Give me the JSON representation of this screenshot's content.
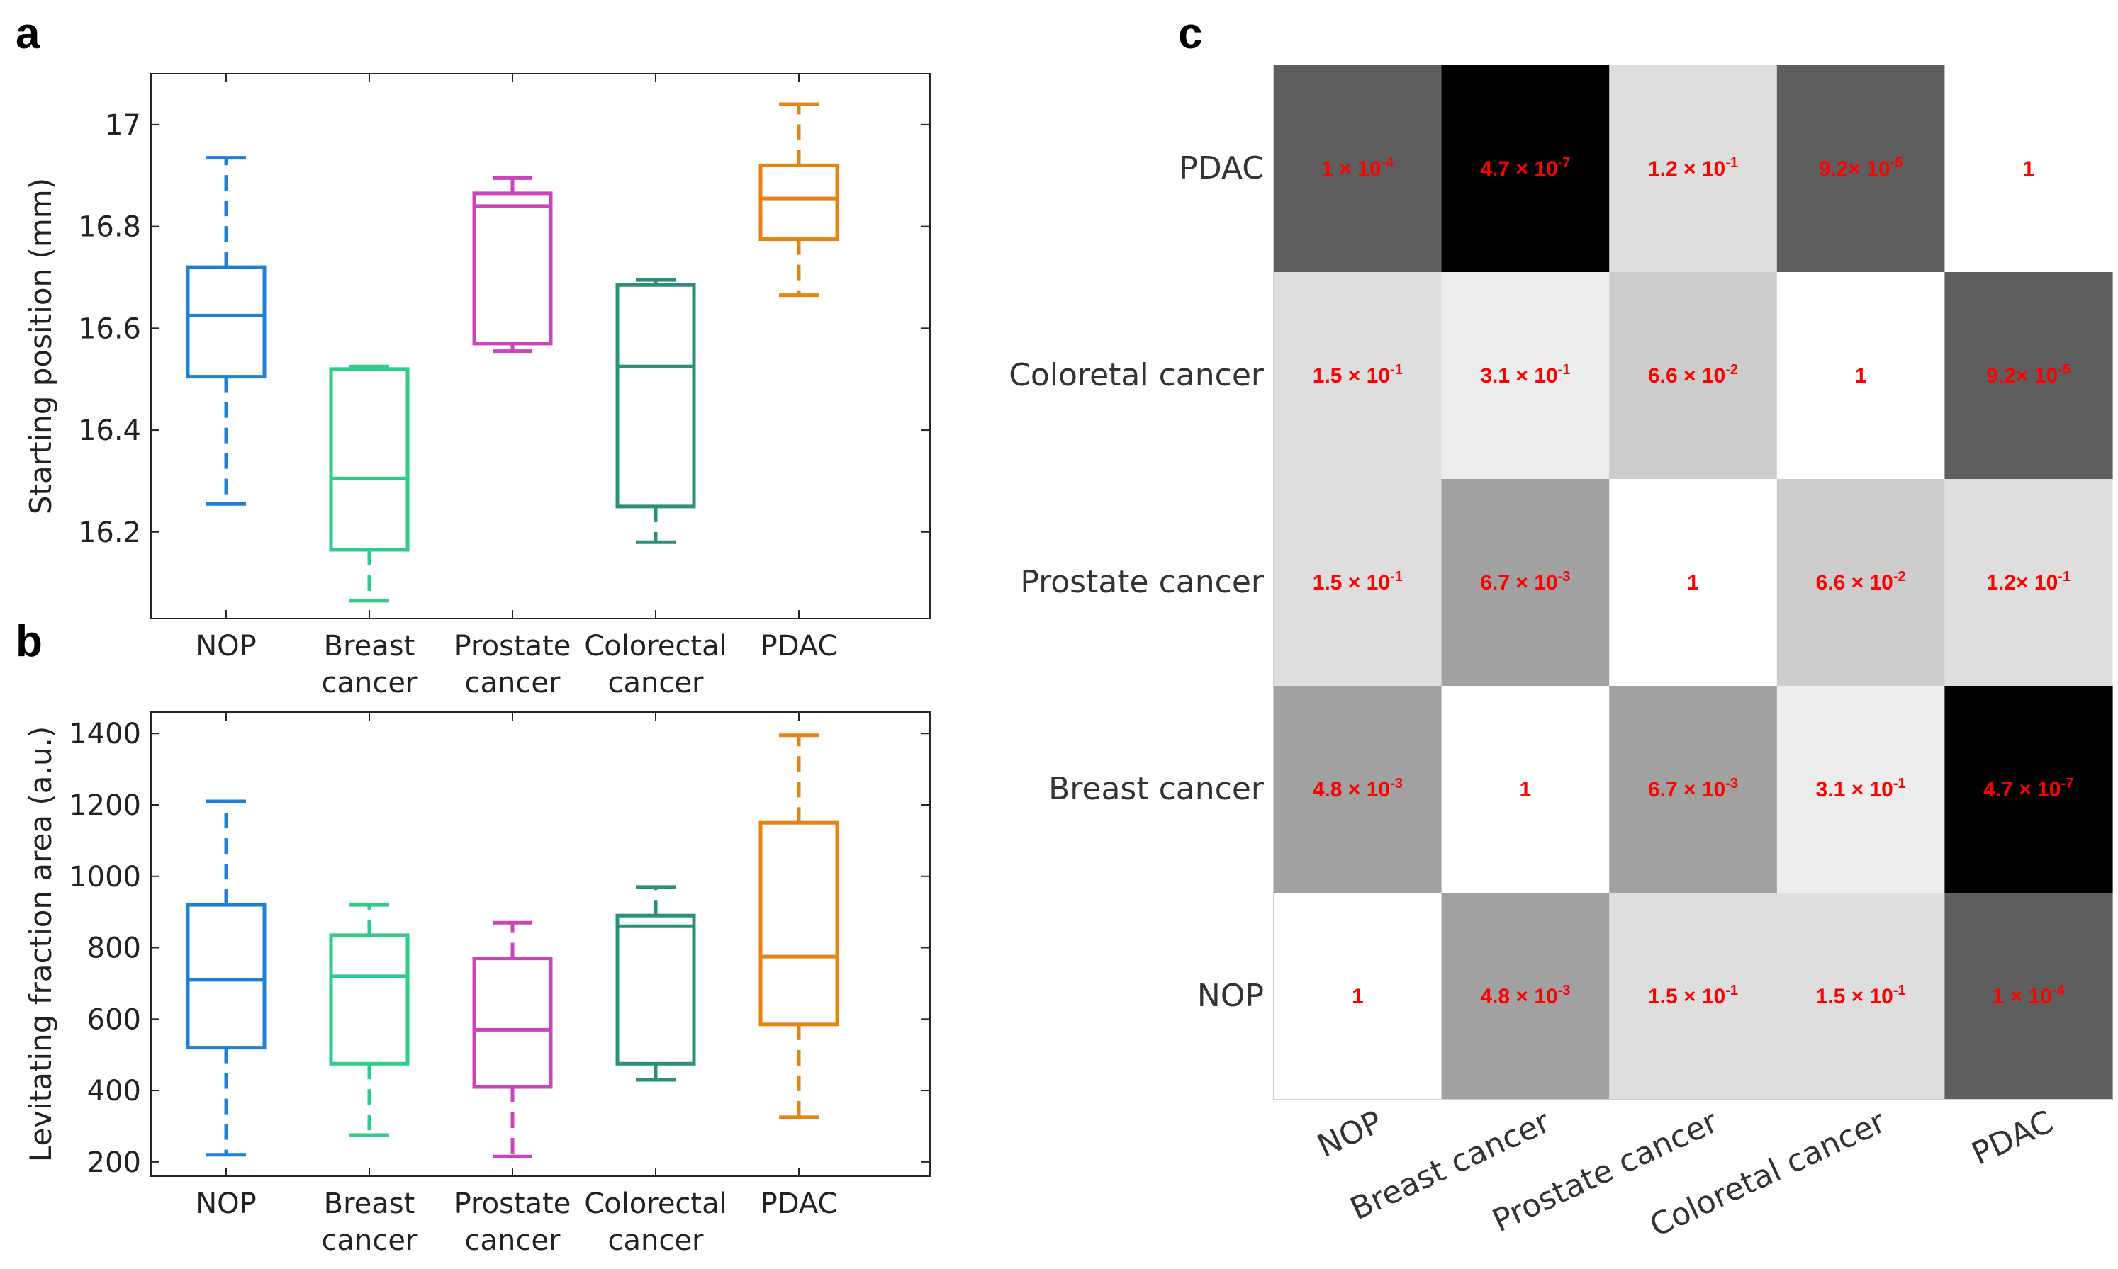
{
  "panels": {
    "a": "a",
    "b": "b",
    "c": "c"
  },
  "chart_data": [
    {
      "id": "a",
      "type": "boxplot",
      "ylabel": "Starting position (mm)",
      "ylim": [
        16.03,
        17.1
      ],
      "yticks": [
        16.2,
        16.4,
        16.6,
        16.8,
        17
      ],
      "ytick_labels": [
        "16.2",
        "16.4",
        "16.6",
        "16.8",
        "17"
      ],
      "categories": [
        {
          "line1": "NOP",
          "line2": ""
        },
        {
          "line1": "Breast",
          "line2": "cancer"
        },
        {
          "line1": "Prostate",
          "line2": "cancer"
        },
        {
          "line1": "Colorectal",
          "line2": "cancer"
        },
        {
          "line1": "PDAC",
          "line2": ""
        }
      ],
      "colors": [
        "#1f7fd6",
        "#2ecc8a",
        "#cc44bb",
        "#2a9078",
        "#e8830f"
      ],
      "boxes": [
        {
          "min": 16.255,
          "q1": 16.505,
          "median": 16.625,
          "q3": 16.72,
          "max": 16.935
        },
        {
          "min": 16.065,
          "q1": 16.165,
          "median": 16.305,
          "q3": 16.52,
          "max": 16.525
        },
        {
          "min": 16.555,
          "q1": 16.57,
          "median": 16.84,
          "q3": 16.865,
          "max": 16.895
        },
        {
          "min": 16.18,
          "q1": 16.25,
          "median": 16.525,
          "q3": 16.685,
          "max": 16.695
        },
        {
          "min": 16.665,
          "q1": 16.775,
          "median": 16.855,
          "q3": 16.92,
          "max": 17.04
        }
      ]
    },
    {
      "id": "b",
      "type": "boxplot",
      "ylabel": "Levitating fraction area (a.u.)",
      "ylim": [
        160,
        1460
      ],
      "yticks": [
        200,
        400,
        600,
        800,
        1000,
        1200,
        1400
      ],
      "ytick_labels": [
        "200",
        "400",
        "600",
        "800",
        "1000",
        "1200",
        "1400"
      ],
      "categories": [
        {
          "line1": "NOP",
          "line2": ""
        },
        {
          "line1": "Breast",
          "line2": "cancer"
        },
        {
          "line1": "Prostate",
          "line2": "cancer"
        },
        {
          "line1": "Colorectal",
          "line2": "cancer"
        },
        {
          "line1": "PDAC",
          "line2": ""
        }
      ],
      "colors": [
        "#1f7fd6",
        "#2ecc8a",
        "#cc44bb",
        "#2a9078",
        "#e8830f"
      ],
      "boxes": [
        {
          "min": 220,
          "q1": 520,
          "median": 710,
          "q3": 920,
          "max": 1210
        },
        {
          "min": 275,
          "q1": 475,
          "median": 720,
          "q3": 835,
          "max": 920
        },
        {
          "min": 215,
          "q1": 410,
          "median": 570,
          "q3": 770,
          "max": 870
        },
        {
          "min": 430,
          "q1": 475,
          "median": 860,
          "q3": 890,
          "max": 970
        },
        {
          "min": 325,
          "q1": 585,
          "median": 775,
          "q3": 1150,
          "max": 1395
        }
      ]
    },
    {
      "id": "c",
      "type": "heatmap",
      "row_labels": [
        "PDAC",
        "Coloretal cancer",
        "Prostate cancer",
        "Breast cancer",
        "NOP"
      ],
      "col_labels": [
        "NOP",
        "Breast cancer",
        "Prostate cancer",
        "Coloretal cancer",
        "PDAC"
      ],
      "cells": [
        [
          {
            "m": "1 × 10",
            "e": "-4",
            "gray": 0.37
          },
          {
            "m": "4.7 × 10",
            "e": "-7",
            "gray": 0.0
          },
          {
            "m": "1.2 × 10",
            "e": "-1",
            "gray": 0.87
          },
          {
            "m": "9.2× 10",
            "e": "-5",
            "gray": 0.37
          },
          {
            "m": "1",
            "e": "",
            "gray": 1.0
          }
        ],
        [
          {
            "m": "1.5 × 10",
            "e": "-1",
            "gray": 0.87
          },
          {
            "m": "3.1 × 10",
            "e": "-1",
            "gray": 0.93
          },
          {
            "m": "6.6 × 10",
            "e": "-2",
            "gray": 0.8
          },
          {
            "m": "1",
            "e": "",
            "gray": 1.0
          },
          {
            "m": "9.2× 10",
            "e": "-5",
            "gray": 0.37
          }
        ],
        [
          {
            "m": "1.5 × 10",
            "e": "-1",
            "gray": 0.87
          },
          {
            "m": "6.7 × 10",
            "e": "-3",
            "gray": 0.63
          },
          {
            "m": "1",
            "e": "",
            "gray": 1.0
          },
          {
            "m": "6.6 × 10",
            "e": "-2",
            "gray": 0.8
          },
          {
            "m": "1.2× 10",
            "e": "-1",
            "gray": 0.87
          }
        ],
        [
          {
            "m": "4.8 × 10",
            "e": "-3",
            "gray": 0.63
          },
          {
            "m": "1",
            "e": "",
            "gray": 1.0
          },
          {
            "m": "6.7 × 10",
            "e": "-3",
            "gray": 0.63
          },
          {
            "m": "3.1 × 10",
            "e": "-1",
            "gray": 0.93
          },
          {
            "m": "4.7 × 10",
            "e": "-7",
            "gray": 0.0
          }
        ],
        [
          {
            "m": "1",
            "e": "",
            "gray": 1.0
          },
          {
            "m": "4.8 × 10",
            "e": "-3",
            "gray": 0.63
          },
          {
            "m": "1.5 × 10",
            "e": "-1",
            "gray": 0.87
          },
          {
            "m": "1.5 × 10",
            "e": "-1",
            "gray": 0.87
          },
          {
            "m": "1 × 10",
            "e": "-4",
            "gray": 0.37
          }
        ]
      ]
    }
  ]
}
